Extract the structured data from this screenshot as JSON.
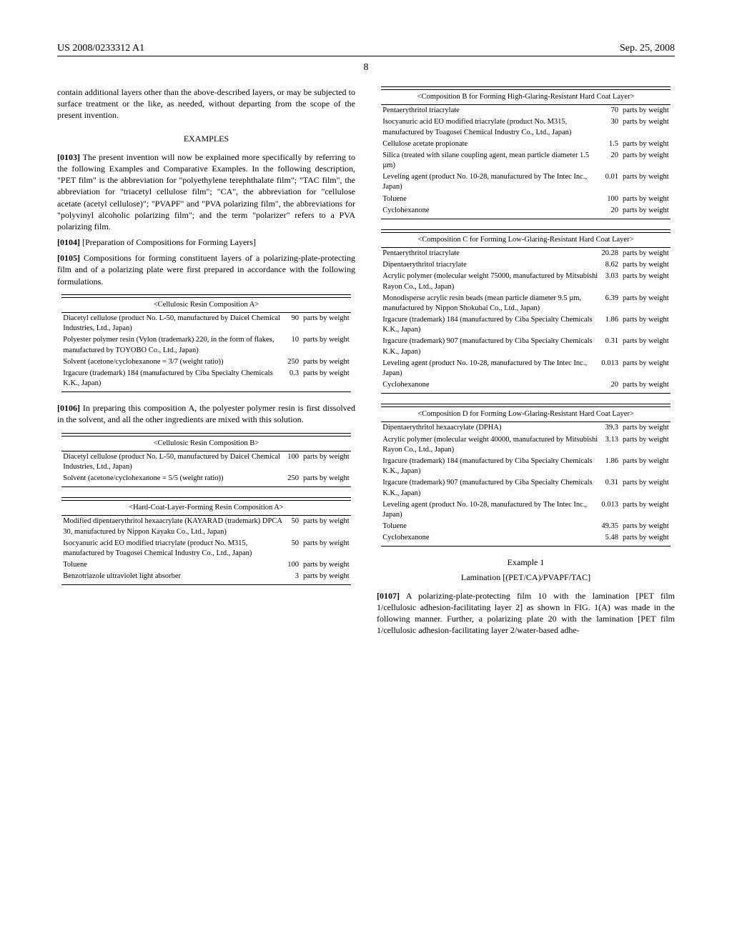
{
  "header": {
    "left": "US 2008/0233312 A1",
    "right": "Sep. 25, 2008"
  },
  "page_number": "8",
  "body": {
    "p_intro": "contain additional layers other than the above-described layers, or may be subjected to surface treatment or the like, as needed, without departing from the scope of the present invention.",
    "examples_heading": "EXAMPLES",
    "p0103_num": "[0103]",
    "p0103": "  The present invention will now be explained more specifically by referring to the following Examples and Comparative Examples. In the following description, \"PET film\" is the abbreviation for \"polyethylene terephthalate film\"; \"TAC film\", the abbreviation for \"triacetyl cellulose film\"; \"CA\", the abbreviation for \"cellulose acetate (acetyl cellulose)\"; \"PVAPF\" and \"PVA polarizing film\", the abbreviations for \"polyvinyl alcoholic polarizing film\"; and the term \"polarizer\" refers to a PVA polarizing film.",
    "p0104_num": "[0104]",
    "p0104": "  [Preparation of Compositions for Forming Layers]",
    "p0105_num": "[0105]",
    "p0105": "  Compositions for forming constituent layers of a polarizing-plate-protecting film and of a polarizing plate were first prepared in accordance with the following formulations.",
    "p0106_num": "[0106]",
    "p0106": "  In preparing this composition A, the polyester polymer resin is first dissolved in the solvent, and all the other ingredients are mixed with this solution.",
    "example1_heading": "Example 1",
    "example1_sub": "Lamination [(PET/CA)/PVAPF/TAC]",
    "p0107_num": "[0107]",
    "p0107": "  A polarizing-plate-protecting film 10 with the lamination [PET film 1/cellulosic adhesion-facilitating layer 2] as shown in FIG. 1(A) was made in the following manner. Further, a polarizing plate 20 with the lamination [PET film 1/cellulosic adhesion-facilitating layer 2/water-based adhe-"
  },
  "tables": {
    "cellA": {
      "title": "<Cellulosic Resin Composition A>",
      "rows": [
        {
          "d": "Diacetyl cellulose (product No. L-50, manufactured by Daicel Chemical Industries, Ltd., Japan)",
          "v": "90",
          "u": "parts by weight"
        },
        {
          "d": "Polyester polymer resin (Vylon (trademark) 220, in the form of flakes, manufactured by TOYOBO Co., Ltd., Japan)",
          "v": "10",
          "u": "parts by weight"
        },
        {
          "d": "Solvent (acetone/cyclohexanone = 3/7 (weight ratio))",
          "v": "250",
          "u": "parts by weight"
        },
        {
          "d": "Irgacure (trademark) 184 (manufactured by Ciba Specialty Chemicals K.K., Japan)",
          "v": "0.3",
          "u": "parts by weight"
        }
      ]
    },
    "cellB": {
      "title": "<Cellulosic Resin Composition B>",
      "rows": [
        {
          "d": "Diacetyl cellulose (product No. L-50, manufactured by Daicel Chemical Industries, Ltd., Japan)",
          "v": "100",
          "u": "parts by weight"
        },
        {
          "d": "Solvent (acetone/cyclohexanone = 5/5 (weight ratio))",
          "v": "250",
          "u": "parts by weight"
        }
      ]
    },
    "hcA": {
      "title": "<Hard-Coat-Layer-Forming Resin Composition A>",
      "rows": [
        {
          "d": "Modified dipentaerythritol hexaacrylate (KAYARAD (trademark) DPCA 30, manufactured by Nippon Kayaku Co., Ltd., Japan)",
          "v": "50",
          "u": "parts by weight"
        },
        {
          "d": "Isocyanuric acid EO modified triacrylate (product No. M315, manufactured by Toagosei Chemical Industry Co., Ltd., Japan)",
          "v": "50",
          "u": "parts by weight"
        },
        {
          "d": "Toluene",
          "v": "100",
          "u": "parts by weight"
        },
        {
          "d": "Benzotriazole ultraviolet light absorber",
          "v": "3",
          "u": "parts by weight"
        }
      ]
    },
    "compB": {
      "title": "<Composition B for Forming High-Glaring-Resistant Hard Coat Layer>",
      "rows": [
        {
          "d": "Pentaerythritol triacrylate",
          "v": "70",
          "u": "parts by weight"
        },
        {
          "d": "Isocyanuric acid EO modified triacrylate (product No. M315, manufactured by Toagosei Chemical Industry Co., Ltd., Japan)",
          "v": "30",
          "u": "parts by weight"
        },
        {
          "d": "Cellulose acetate propionate",
          "v": "1.5",
          "u": "parts by weight"
        },
        {
          "d": "Silica (treated with silane coupling agent, mean particle diameter 1.5 µm)",
          "v": "20",
          "u": "parts by weight"
        },
        {
          "d": "Leveling agent (product No. 10-28, manufactured by The Intec Inc., Japan)",
          "v": "0.01",
          "u": "parts by weight"
        },
        {
          "d": "Toluene",
          "v": "100",
          "u": "parts by weight"
        },
        {
          "d": "Cyclohexanone",
          "v": "20",
          "u": "parts by weight"
        }
      ]
    },
    "compC": {
      "title": "<Composition C for Forming Low-Glaring-Resistant Hard Coat Layer>",
      "rows": [
        {
          "d": "Pentaerythritol triacrylate",
          "v": "20.28",
          "u": "parts by weight"
        },
        {
          "d": "Dipentaerythritol triacrylate",
          "v": "8.62",
          "u": "parts by weight"
        },
        {
          "d": "Acrylic polymer (molecular weight 75000, manufactured by Mitsubishi Rayon Co., Ltd., Japan)",
          "v": "3.03",
          "u": "parts by weight"
        },
        {
          "d": "Monodisperse acrylic resin beads (mean particle diameter 9.5 µm, manufactured by Nippon Shokubai Co., Ltd., Japan)",
          "v": "6.39",
          "u": "parts by weight"
        },
        {
          "d": "Irgacure (trademark) 184 (manufactured by Ciba Specialty Chemicals K.K., Japan)",
          "v": "1.86",
          "u": "parts by weight"
        },
        {
          "d": "Irgacure (trademark) 907 (manufactured by Ciba Specialty Chemicals K.K., Japan)",
          "v": "0.31",
          "u": "parts by weight"
        },
        {
          "d": "Leveling agent (product No. 10-28, manufactured by The Intec Inc., Japan)",
          "v": "0.013",
          "u": "parts by weight"
        },
        {
          "d": "Cyclohexanone",
          "v": "20",
          "u": "parts by weight"
        }
      ]
    },
    "compD": {
      "title": "<Composition D for Forming Low-Glaring-Resistant Hard Coat Layer>",
      "rows": [
        {
          "d": "Dipentaerythritol hexaacrylate (DPHA)",
          "v": "39.3",
          "u": "parts by weight"
        },
        {
          "d": "Acrylic polymer (molecular weight 40000, manufactured by Mitsubishi Rayon Co., Ltd., Japan)",
          "v": "3.13",
          "u": "parts by weight"
        },
        {
          "d": "Irgacure (trademark) 184 (manufactured by Ciba Specialty Chemicals K.K., Japan)",
          "v": "1.86",
          "u": "parts by weight"
        },
        {
          "d": "Irgacure (trademark) 907 (manufactured by Ciba Specialty Chemicals K.K., Japan)",
          "v": "0.31",
          "u": "parts by weight"
        },
        {
          "d": "Leveling agent (product No. 10-28, manufactured by The Intec Inc., Japan)",
          "v": "0.013",
          "u": "parts by weight"
        },
        {
          "d": "Toluene",
          "v": "49.35",
          "u": "parts by weight"
        },
        {
          "d": "Cyclohexanone",
          "v": "5.48",
          "u": "parts by weight"
        }
      ]
    }
  }
}
